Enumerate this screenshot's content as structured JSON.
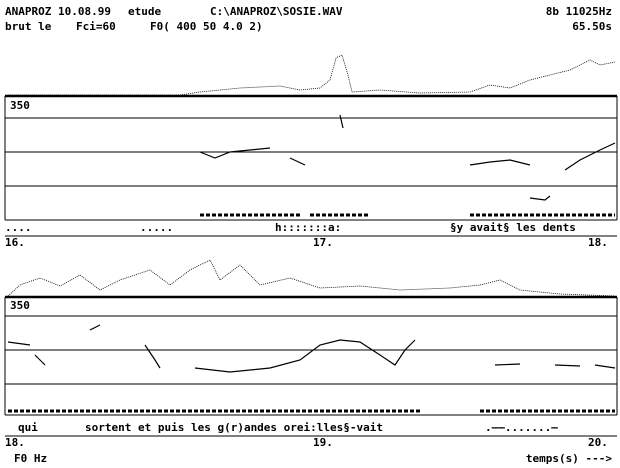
{
  "header": {
    "program": "ANAPROZ 10.08.99",
    "mode": "etude",
    "file": "C:\\ANAPROZ\\SOSIE.WAV",
    "format": "8b 11025Hz",
    "line2_left": "brut le",
    "filter": "Fci=60",
    "f0_params": "F0( 400 50 4.0  2)",
    "duration": "65.50s"
  },
  "panels": [
    {
      "f0_max": "350",
      "transcript": [
        "....",
        ".....",
        "h:::::::a:",
        "§y  avait§  les dents"
      ],
      "time_labels": [
        "16.",
        "17.",
        "18."
      ]
    },
    {
      "f0_max": "350",
      "transcript": [
        "qui",
        "sortent et puis les g(r)andes orei:lles§-vait",
        ".——.......—"
      ],
      "time_labels": [
        "18.",
        "19.",
        "20."
      ]
    }
  ],
  "footer": {
    "axis_label": "F0 Hz",
    "time_label": "temps(s) --->"
  }
}
